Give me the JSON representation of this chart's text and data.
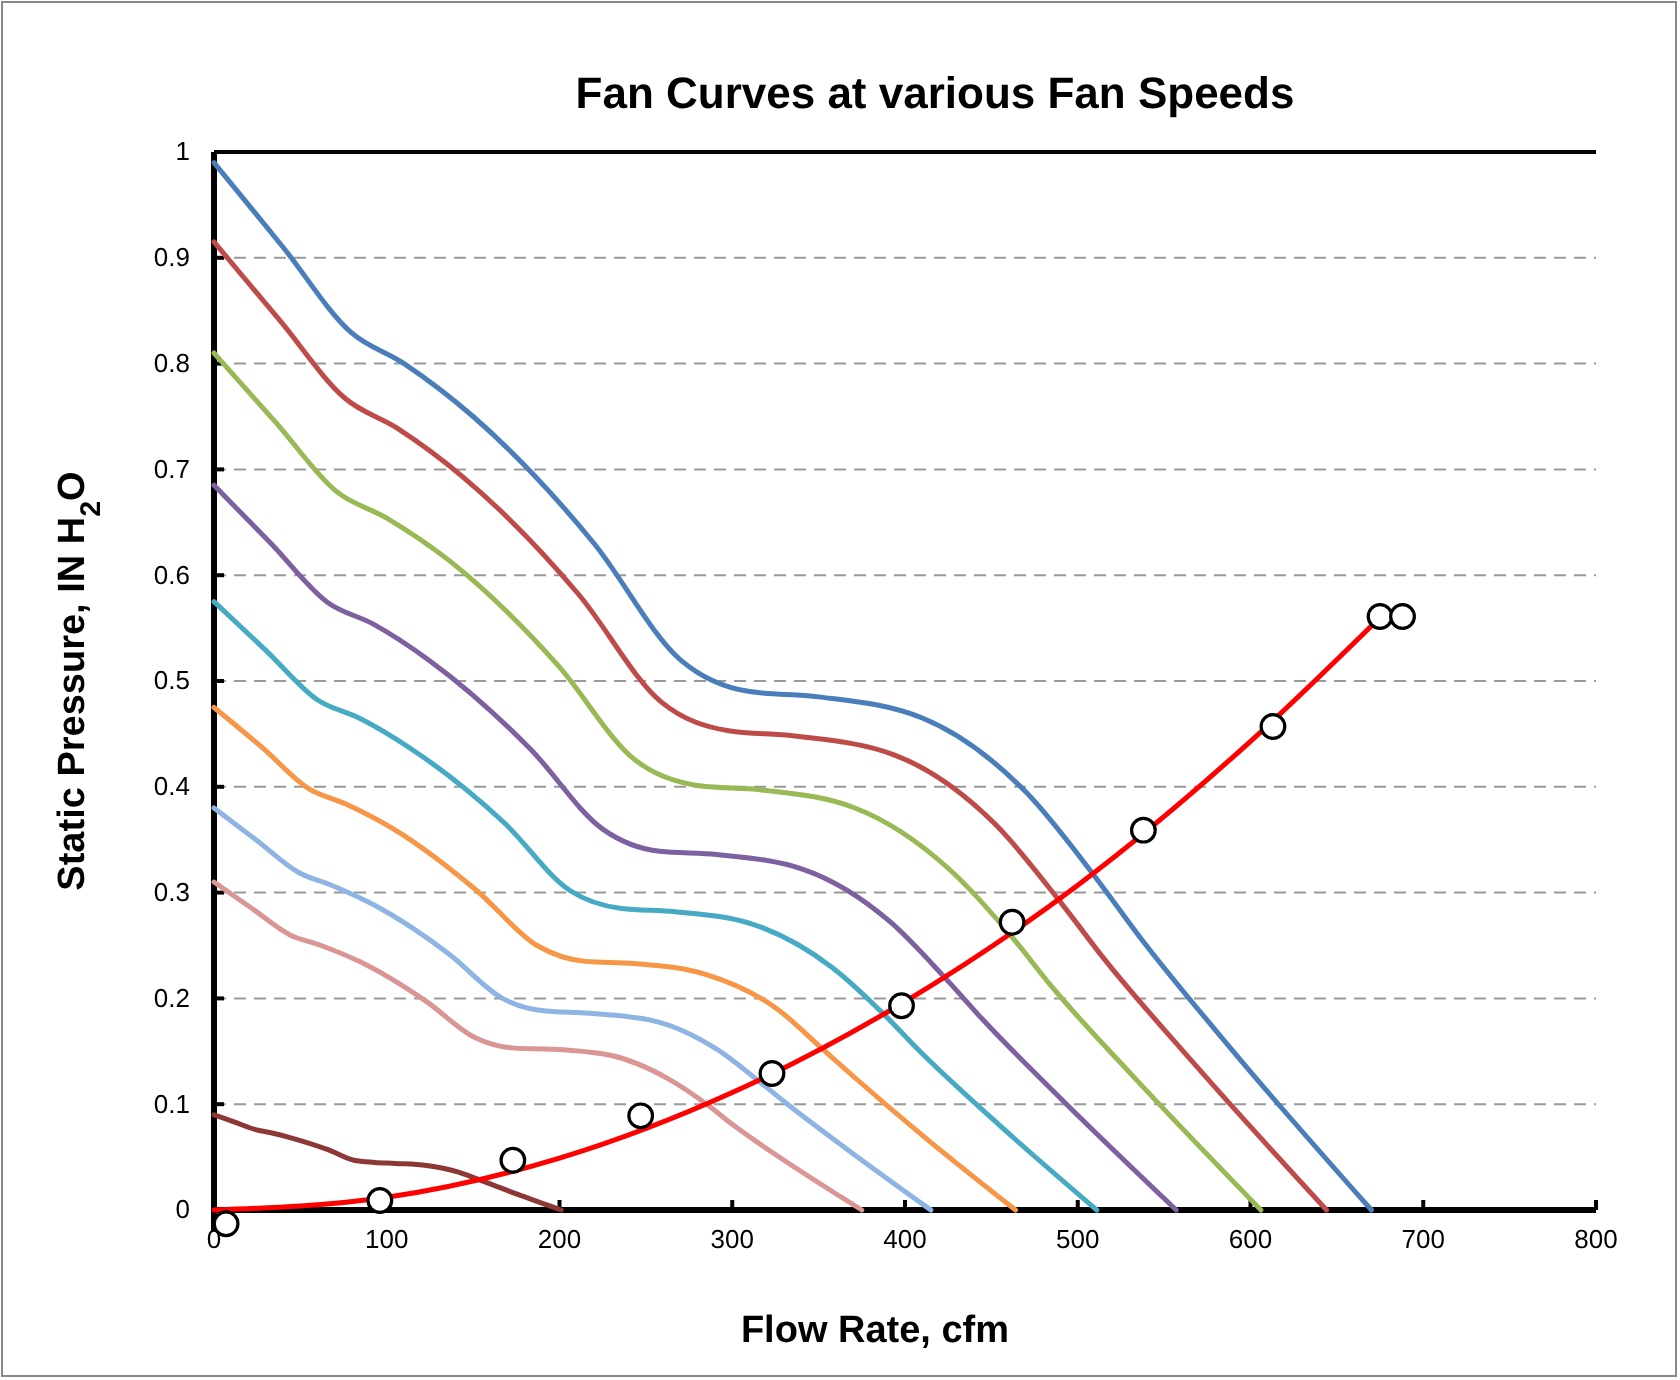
{
  "chart_data": {
    "type": "line",
    "title": "Fan Curves at various Fan Speeds",
    "xlabel": "Flow Rate, cfm",
    "ylabel": "Static Pressure,  IN H$_{2}$O",
    "xlim": [
      0,
      800
    ],
    "xticks": [
      0,
      100,
      200,
      300,
      400,
      500,
      600,
      700,
      800
    ],
    "ylim": [
      -0.02,
      1
    ],
    "yticks": [
      0,
      0.1,
      0.2,
      0.3,
      0.4,
      0.5,
      0.6,
      0.7,
      0.8,
      0.9,
      1
    ],
    "grid": "y",
    "marker": "none",
    "line_style": "solid",
    "series": [
      {
        "color": "#4a7ebb",
        "x": [
          0,
          40,
          79,
          110,
          150,
          220,
          270,
          310,
          350,
          410,
          470,
          510,
          535,
          590,
          670
        ],
        "values": [
          0.99,
          0.91,
          0.83,
          0.8,
          0.75,
          0.63,
          0.52,
          0.49,
          0.485,
          0.465,
          0.395,
          0.315,
          0.26,
          0.15,
          0
        ]
      },
      {
        "color": "#be4b48",
        "x": [
          0,
          38,
          76,
          106,
          144,
          211,
          259,
          298,
          336,
          394,
          452,
          490,
          514,
          567,
          644
        ],
        "values": [
          0.915,
          0.841,
          0.767,
          0.739,
          0.693,
          0.582,
          0.48,
          0.453,
          0.448,
          0.43,
          0.365,
          0.291,
          0.24,
          0.139,
          0
        ]
      },
      {
        "color": "#98b954",
        "x": [
          0,
          36,
          71,
          100,
          136,
          199,
          244,
          281,
          317,
          371,
          425,
          462,
          484,
          534,
          606
        ],
        "values": [
          0.81,
          0.744,
          0.679,
          0.654,
          0.614,
          0.515,
          0.425,
          0.401,
          0.397,
          0.38,
          0.323,
          0.258,
          0.213,
          0.123,
          0
        ]
      },
      {
        "color": "#7d60a0",
        "x": [
          0,
          33,
          66,
          92,
          125,
          183,
          225,
          258,
          291,
          341,
          391,
          424,
          445,
          491,
          557
        ],
        "values": [
          0.685,
          0.63,
          0.574,
          0.554,
          0.519,
          0.436,
          0.36,
          0.339,
          0.336,
          0.322,
          0.273,
          0.218,
          0.18,
          0.104,
          0
        ]
      },
      {
        "color": "#46aac5",
        "x": [
          0,
          30,
          60,
          84,
          114,
          168,
          206,
          236,
          267,
          312,
          358,
          389,
          408,
          450,
          511
        ],
        "values": [
          0.575,
          0.529,
          0.482,
          0.465,
          0.436,
          0.366,
          0.302,
          0.285,
          0.282,
          0.27,
          0.229,
          0.183,
          0.151,
          0.087,
          0
        ]
      },
      {
        "color": "#f79646",
        "x": [
          0,
          28,
          55,
          76,
          104,
          152,
          187,
          215,
          243,
          284,
          326,
          353,
          371,
          409,
          464
        ],
        "values": [
          0.475,
          0.437,
          0.398,
          0.384,
          0.36,
          0.302,
          0.25,
          0.235,
          0.233,
          0.223,
          0.19,
          0.151,
          0.125,
          0.072,
          0
        ]
      },
      {
        "color": "#8eb4e3",
        "x": [
          0,
          25,
          49,
          68,
          93,
          136,
          167,
          192,
          217,
          254,
          291,
          316,
          332,
          366,
          415
        ],
        "values": [
          0.38,
          0.349,
          0.319,
          0.307,
          0.288,
          0.242,
          0.2,
          0.188,
          0.186,
          0.179,
          0.152,
          0.121,
          0.1,
          0.058,
          0
        ]
      },
      {
        "color": "#d99694",
        "x": [
          0,
          22,
          44,
          62,
          84,
          123,
          151,
          174,
          196,
          230,
          263,
          286,
          300,
          330,
          375
        ],
        "values": [
          0.31,
          0.285,
          0.26,
          0.25,
          0.235,
          0.197,
          0.163,
          0.153,
          0.152,
          0.146,
          0.124,
          0.099,
          0.081,
          0.047,
          0
        ]
      },
      {
        "color": "#8c3836",
        "x": [
          0,
          12,
          24,
          33,
          45,
          66,
          81,
          93,
          105,
          123,
          141,
          153,
          161,
          177,
          201
        ],
        "values": [
          0.09,
          0.083,
          0.076,
          0.073,
          0.068,
          0.057,
          0.047,
          0.045,
          0.044,
          0.042,
          0.036,
          0.029,
          0.024,
          0.014,
          0
        ]
      },
      {
        "color": "#ff0000",
        "x": [
          0,
          100,
          200,
          300,
          400,
          500,
          600,
          675
        ],
        "values": [
          0,
          0.012,
          0.049,
          0.111,
          0.197,
          0.307,
          0.443,
          0.56
        ]
      },
      {
        "type": "scatter",
        "marker": "circle",
        "color": "#000000",
        "x": [
          7,
          96,
          173,
          247,
          323,
          398,
          462,
          538,
          613,
          675,
          688
        ],
        "values": [
          -0.013,
          0.009,
          0.047,
          0.089,
          0.129,
          0.193,
          0.272,
          0.359,
          0.457,
          0.561,
          0.561
        ]
      }
    ]
  }
}
